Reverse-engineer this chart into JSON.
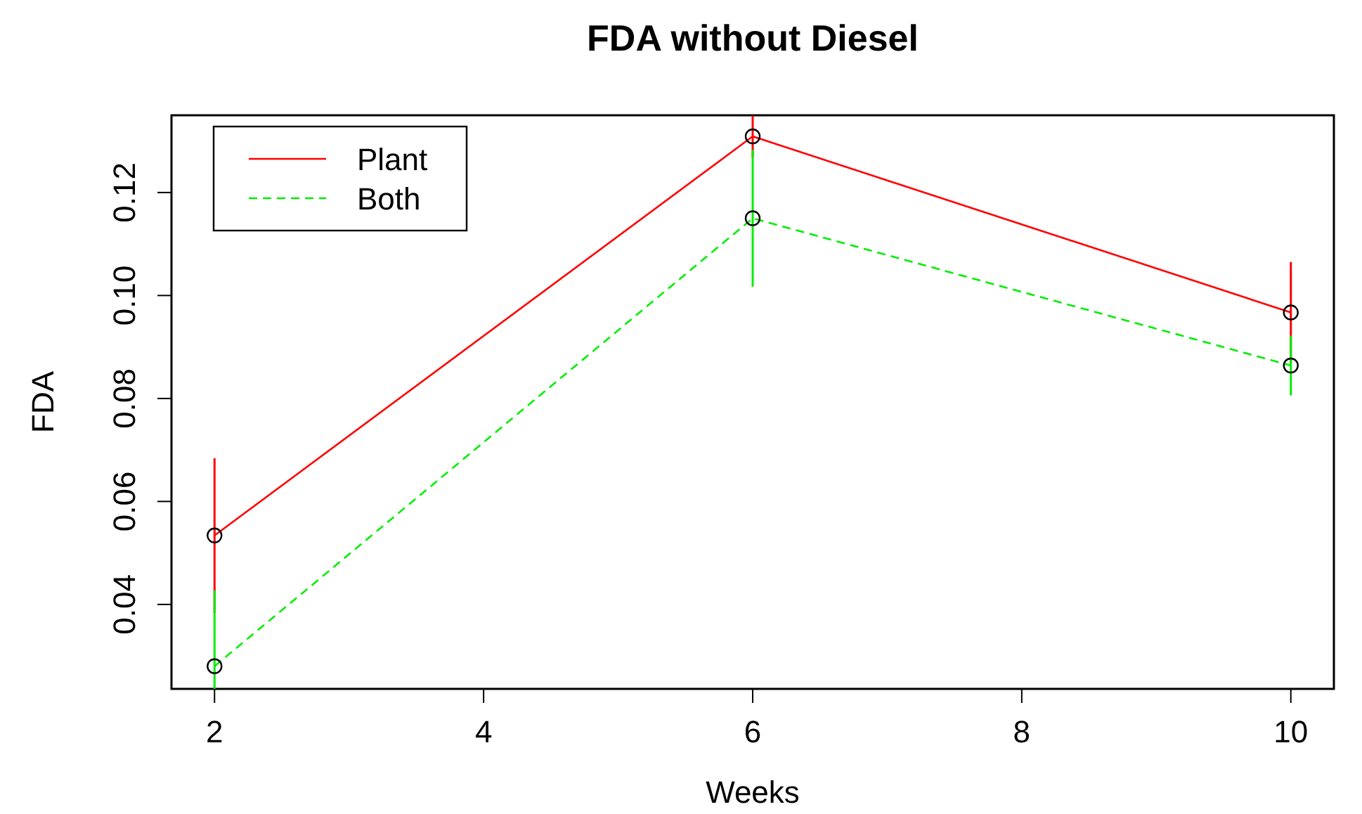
{
  "chart_data": {
    "type": "line",
    "title": "FDA without Diesel",
    "xlabel": "Weeks",
    "ylabel": "FDA",
    "x": [
      2,
      6,
      10
    ],
    "series": [
      {
        "name": "Plant",
        "color": "#ff0000",
        "values": [
          0.0534,
          0.1309,
          0.0967
        ],
        "errors": [
          0.015,
          0.004,
          0.0098
        ],
        "line_style": "solid"
      },
      {
        "name": "Both",
        "color": "#00ee00",
        "values": [
          0.028,
          0.115,
          0.0864
        ],
        "errors": [
          [
            0.0236,
            0.0427
          ],
          0.0133,
          0.0058
        ],
        "line_style": "dashed"
      }
    ],
    "xlim": [
      1.68,
      10.32
    ],
    "xticks": [
      2,
      4,
      6,
      8,
      10
    ],
    "ylim": [
      0.0236,
      0.135
    ],
    "yticks": [
      0.04,
      0.06,
      0.08,
      {
        "value": 0.1,
        "label": "0.10"
      },
      0.12
    ],
    "marker": "circle",
    "legend": "top left",
    "grid": false
  }
}
